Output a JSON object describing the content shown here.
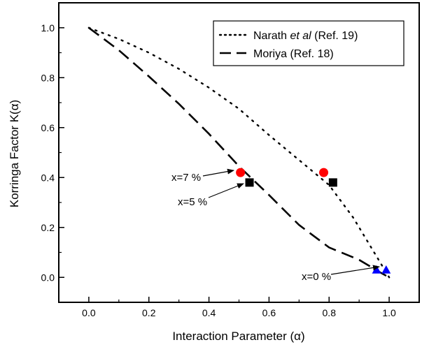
{
  "chart_data": {
    "type": "scatter",
    "title": "",
    "xlabel": "Interaction Parameter (α)",
    "ylabel": "Korringa Factor K(α)",
    "xlim": [
      -0.1,
      1.1
    ],
    "ylim": [
      -0.1,
      1.1
    ],
    "x_ticks": [
      "0.0",
      "0.2",
      "0.4",
      "0.6",
      "0.8",
      "1.0"
    ],
    "y_ticks": [
      "0.0",
      "0.2",
      "0.4",
      "0.6",
      "0.8",
      "1.0"
    ],
    "grid": false,
    "legend_position": "top-right",
    "legend": [
      {
        "label_prefix": "Narath ",
        "label_italic": "et al",
        "label_suffix": " (Ref. 19)",
        "style": "dotted"
      },
      {
        "label": "Moriya (Ref. 18)",
        "style": "dashed"
      }
    ],
    "series": [
      {
        "style": "dotted",
        "x": [
          0.0,
          0.1,
          0.2,
          0.3,
          0.4,
          0.5,
          0.6,
          0.7,
          0.8,
          0.88,
          0.95,
          1.0
        ],
        "y": [
          1.0,
          0.955,
          0.9,
          0.835,
          0.76,
          0.675,
          0.57,
          0.47,
          0.37,
          0.24,
          0.1,
          0.0
        ]
      },
      {
        "style": "dashed",
        "x": [
          0.0,
          0.1,
          0.2,
          0.3,
          0.4,
          0.5,
          0.6,
          0.7,
          0.8,
          0.9,
          0.97,
          1.0
        ],
        "y": [
          1.0,
          0.91,
          0.805,
          0.695,
          0.575,
          0.445,
          0.33,
          0.21,
          0.12,
          0.07,
          0.02,
          0.0
        ]
      },
      {
        "label": "x=7 %",
        "marker": "circle",
        "color": "#ff0000",
        "x": [
          0.505,
          0.782
        ],
        "y": [
          0.42,
          0.42
        ]
      },
      {
        "label": "x=5 %",
        "marker": "square",
        "color": "#000000",
        "x": [
          0.535,
          0.813
        ],
        "y": [
          0.38,
          0.38
        ]
      },
      {
        "label": "x=0 %",
        "marker": "triangle",
        "color": "#0000ff",
        "x": [
          0.958,
          0.99
        ],
        "y": [
          0.03,
          0.03
        ]
      }
    ],
    "annotations": [
      {
        "text": "x=7 %",
        "target_x": 0.505,
        "target_y": 0.42
      },
      {
        "text": "x=5 %",
        "target_x": 0.535,
        "target_y": 0.38
      },
      {
        "text": "x=0 %",
        "target_x": 0.958,
        "target_y": 0.03
      }
    ]
  }
}
